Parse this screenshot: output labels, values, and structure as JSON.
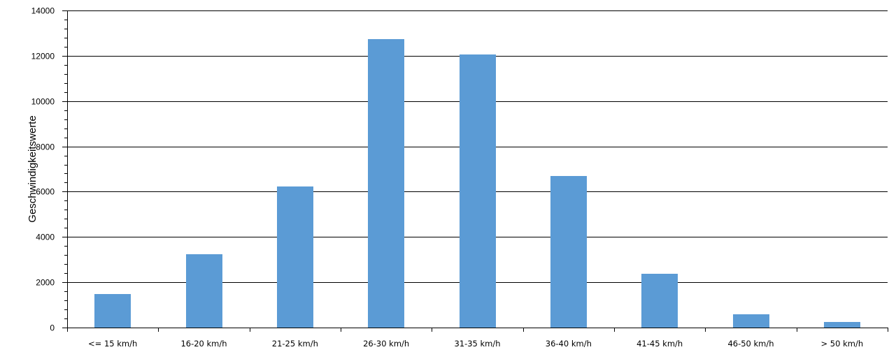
{
  "chart_data": {
    "type": "bar",
    "title": "",
    "xlabel": "",
    "ylabel": "Geschwindigkeitswerte",
    "categories": [
      "<= 15 km/h",
      "16-20 km/h",
      "21-25 km/h",
      "26-30 km/h",
      "31-35 km/h",
      "36-40 km/h",
      "41-45 km/h",
      "46-50 km/h",
      "> 50 km/h"
    ],
    "series": [
      {
        "values": [
          1480,
          3250,
          6220,
          12730,
          12060,
          6680,
          2370,
          590,
          240
        ]
      }
    ],
    "ylim": [
      0,
      14000
    ],
    "yticks": [
      0,
      2000,
      4000,
      6000,
      8000,
      10000,
      12000,
      14000
    ],
    "grid": true,
    "legend": "none",
    "bar_color": "#5b9bd5"
  }
}
